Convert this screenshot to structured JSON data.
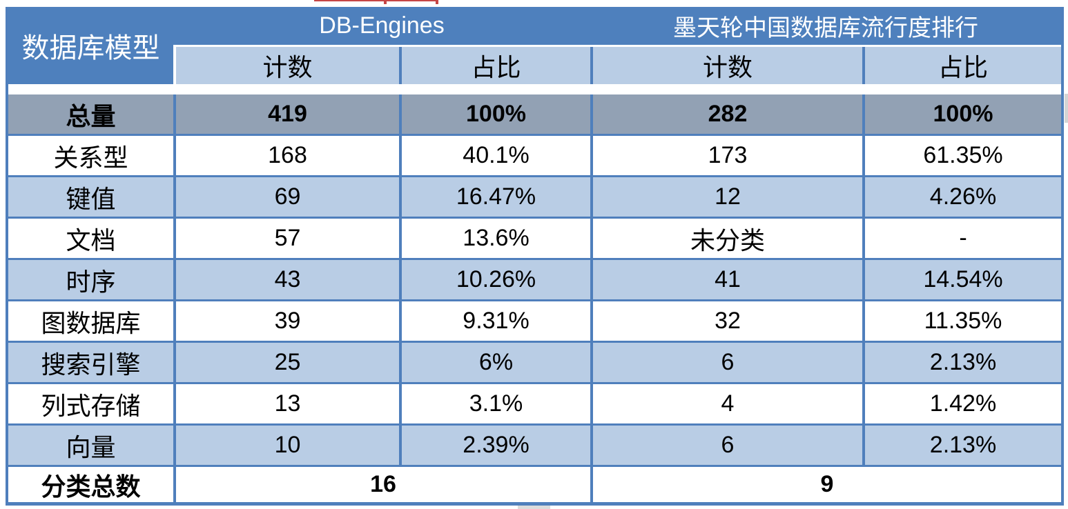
{
  "header": {
    "model_label": "数据库模型",
    "group_left": "DB-Engines",
    "group_right": "墨天轮中国数据库流行度排行",
    "sub_count_left": "计数",
    "sub_share_left": "占比",
    "sub_count_right": "计数",
    "sub_share_right": "占比"
  },
  "total_row": {
    "label": "总量",
    "db_count": "419",
    "db_share": "100%",
    "cn_count": "282",
    "cn_share": "100%"
  },
  "rows": [
    {
      "label": "关系型",
      "db_count": "168",
      "db_share": "40.1%",
      "cn_count": "173",
      "cn_share": "61.35%"
    },
    {
      "label": "键值",
      "db_count": "69",
      "db_share": "16.47%",
      "cn_count": "12",
      "cn_share": "4.26%"
    },
    {
      "label": "文档",
      "db_count": "57",
      "db_share": "13.6%",
      "cn_count": "未分类",
      "cn_share": "-"
    },
    {
      "label": "时序",
      "db_count": "43",
      "db_share": "10.26%",
      "cn_count": "41",
      "cn_share": "14.54%"
    },
    {
      "label": "图数据库",
      "db_count": "39",
      "db_share": "9.31%",
      "cn_count": "32",
      "cn_share": "11.35%"
    },
    {
      "label": "搜索引擎",
      "db_count": "25",
      "db_share": "6%",
      "cn_count": "6",
      "cn_share": "2.13%"
    },
    {
      "label": "列式存储",
      "db_count": "13",
      "db_share": "3.1%",
      "cn_count": "4",
      "cn_share": "1.42%"
    },
    {
      "label": "向量",
      "db_count": "10",
      "db_share": "2.39%",
      "cn_count": "6",
      "cn_share": "2.13%"
    }
  ],
  "footer_row": {
    "label": "分类总数",
    "left_value": "16",
    "right_value": "9"
  },
  "colors": {
    "header_blue": "#4e80bd",
    "light_blue": "#b9cde5",
    "total_row_gray": "#92a1b4",
    "border_blue": "#4f7fbc",
    "header_text": "#ffffff",
    "body_text": "#000000",
    "artifact_red": "#c54545"
  },
  "chart_data": {
    "type": "table",
    "title": "数据库模型分类对比：DB-Engines 与 墨天轮中国数据库流行度排行",
    "column_groups": [
      "数据库模型",
      "DB-Engines",
      "墨天轮中国数据库流行度排行"
    ],
    "columns": [
      "数据库模型",
      "DB-Engines 计数",
      "DB-Engines 占比",
      "墨天轮 计数",
      "墨天轮 占比"
    ],
    "rows": [
      [
        "总量",
        "419",
        "100%",
        "282",
        "100%"
      ],
      [
        "关系型",
        "168",
        "40.1%",
        "173",
        "61.35%"
      ],
      [
        "键值",
        "69",
        "16.47%",
        "12",
        "4.26%"
      ],
      [
        "文档",
        "57",
        "13.6%",
        "未分类",
        "-"
      ],
      [
        "时序",
        "43",
        "10.26%",
        "41",
        "14.54%"
      ],
      [
        "图数据库",
        "39",
        "9.31%",
        "32",
        "11.35%"
      ],
      [
        "搜索引擎",
        "25",
        "6%",
        "6",
        "2.13%"
      ],
      [
        "列式存储",
        "13",
        "3.1%",
        "4",
        "1.42%"
      ],
      [
        "向量",
        "10",
        "2.39%",
        "6",
        "2.13%"
      ],
      [
        "分类总数",
        "16",
        "",
        "9",
        ""
      ]
    ]
  }
}
